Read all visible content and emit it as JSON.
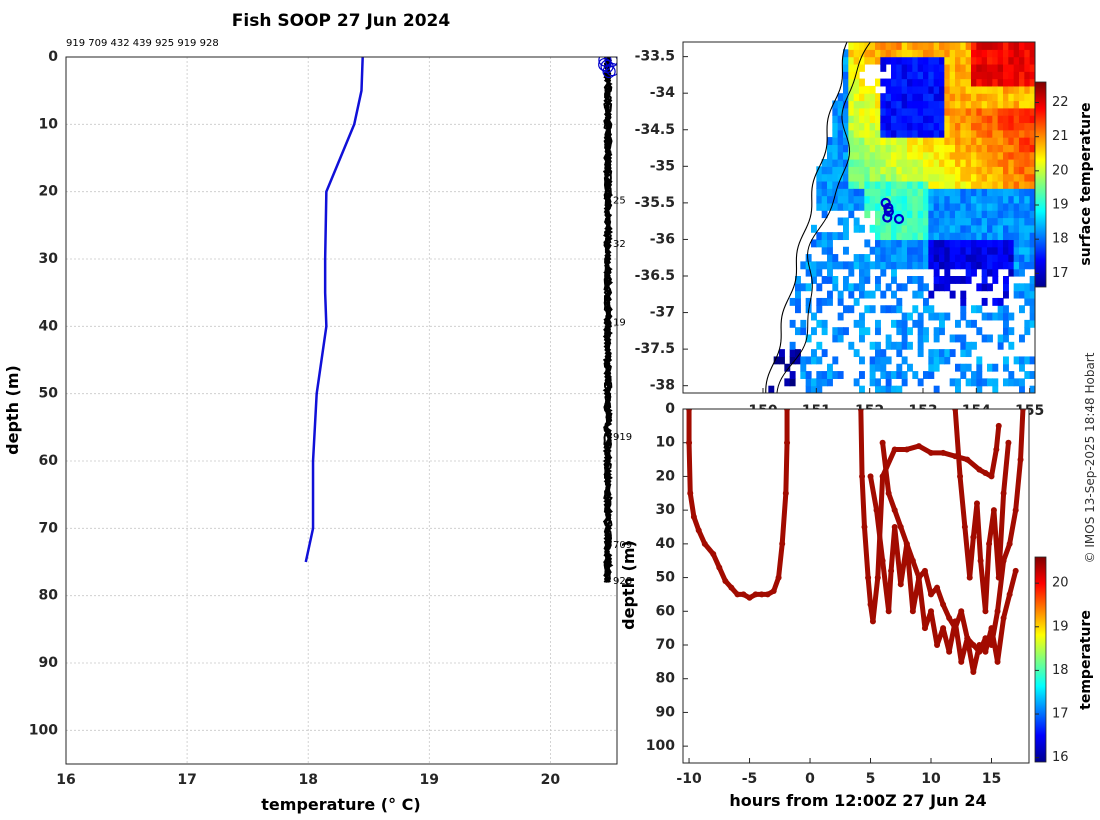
{
  "colors": {
    "profile_line": "#1010d8",
    "trace_dots": "#a20b00",
    "markers": "#0000cc",
    "grid": "#c8c8c8",
    "coast": "#000000"
  },
  "credit": "© IMOS 13-Sep-2025 18:48 Hobart",
  "chart_data": [
    {
      "type": "line",
      "title": "Fish SOOP 27 Jun 2024",
      "subtitle": "919 709 432 439 925 919 928",
      "xlabel": "temperature (° C)",
      "ylabel": "depth (m)",
      "xlim": [
        16,
        20.55
      ],
      "ylim": [
        105,
        0
      ],
      "xticks": [
        "16",
        "17",
        "18",
        "19",
        "20"
      ],
      "yticks": [
        "0",
        "10",
        "20",
        "30",
        "40",
        "50",
        "60",
        "70",
        "80",
        "90",
        "100"
      ],
      "grid": true,
      "series": [
        {
          "name": "mean profile",
          "x": [
            18.45,
            18.44,
            18.38,
            18.15,
            18.14,
            18.14,
            18.15,
            18.07,
            18.04,
            18.04,
            17.98
          ],
          "y": [
            0,
            5,
            10,
            20,
            30,
            35,
            40,
            50,
            60,
            70,
            75
          ]
        }
      ],
      "annotations": [
        "25",
        "32",
        "19",
        "919",
        "709",
        "928"
      ],
      "surface_markers": 6
    },
    {
      "type": "heatmap",
      "title": "",
      "xlabel": "",
      "ylabel": "",
      "xlim": [
        148.5,
        155.1
      ],
      "ylim": [
        -38.1,
        -33.3
      ],
      "xticks": [
        "150",
        "151",
        "152",
        "153",
        "154",
        "155"
      ],
      "yticks": [
        "-33.5",
        "-34",
        "-34.5",
        "-35",
        "-35.5",
        "-36",
        "-36.5",
        "-37",
        "-37.5",
        "-38"
      ],
      "colorbar": {
        "label": "surface temperature",
        "range": [
          16.6,
          22.6
        ],
        "ticks": [
          "17",
          "18",
          "19",
          "20",
          "21",
          "22"
        ]
      },
      "stations": [
        {
          "lon": 152.3,
          "lat": -35.5
        },
        {
          "lon": 152.35,
          "lat": -35.57
        },
        {
          "lon": 152.36,
          "lat": -35.62
        },
        {
          "lon": 152.33,
          "lat": -35.7
        },
        {
          "lon": 152.55,
          "lat": -35.72
        }
      ]
    },
    {
      "type": "scatter",
      "title": "",
      "xlabel": "hours from 12:00Z 27 Jun 24",
      "ylabel": "depth (m)",
      "xlim": [
        -10.5,
        18.1
      ],
      "ylim": [
        105,
        0
      ],
      "xticks": [
        "-10",
        "-5",
        "0",
        "5",
        "10",
        "15"
      ],
      "yticks": [
        "0",
        "10",
        "20",
        "30",
        "40",
        "50",
        "60",
        "70",
        "80",
        "90",
        "100"
      ],
      "colorbar": {
        "label": "temperature",
        "range": [
          15.9,
          20.6
        ],
        "ticks": [
          "16",
          "17",
          "18",
          "19",
          "20"
        ]
      },
      "series": [
        {
          "name": "trace 1",
          "x": [
            -10.0,
            -10.0,
            -9.9,
            -9.6,
            -9.2,
            -8.7,
            -8.0,
            -7.5,
            -7.0,
            -6.5,
            -6.0,
            -5.5,
            -5.0,
            -4.5,
            -4.0,
            -3.5,
            -3.0,
            -2.6,
            -2.3,
            -2.0,
            -1.9,
            -1.9
          ],
          "y": [
            0,
            10,
            25,
            32,
            36,
            40,
            43,
            47,
            51,
            53,
            55,
            55,
            56,
            55,
            55,
            55,
            54,
            50,
            40,
            25,
            10,
            0
          ]
        },
        {
          "name": "trace 2",
          "x": [
            4.2,
            4.3,
            4.5,
            4.8,
            5.0,
            5.2,
            5.6,
            6.0,
            7.0,
            8.0,
            9.0,
            10.0,
            11.0,
            12.0,
            13.0,
            14.0,
            14.5,
            15.0,
            15.4,
            15.6
          ],
          "y": [
            0,
            20,
            35,
            50,
            58,
            63,
            50,
            20,
            12,
            12,
            11,
            13,
            13,
            14,
            15,
            18,
            19,
            20,
            12,
            5
          ]
        },
        {
          "name": "trace 3",
          "x": [
            5.0,
            5.5,
            6.0,
            6.5,
            6.7,
            7.0,
            7.5,
            8.0,
            8.5,
            9.0,
            9.5,
            10.0,
            10.5,
            11.0,
            11.5,
            12.0,
            12.5,
            13.0,
            13.5,
            14.0,
            14.5,
            15.0,
            15.5,
            16.0,
            16.5,
            17.0
          ],
          "y": [
            20,
            30,
            45,
            60,
            48,
            35,
            52,
            40,
            60,
            50,
            65,
            60,
            70,
            65,
            72,
            63,
            75,
            68,
            78,
            70,
            72,
            65,
            75,
            62,
            55,
            48
          ]
        },
        {
          "name": "trace 4",
          "x": [
            6.0,
            6.5,
            7.0,
            7.5,
            8.0,
            8.5,
            9.0,
            9.5,
            10.0,
            10.5,
            11.0,
            11.5,
            12.0,
            12.5,
            13.0,
            13.5,
            14.0,
            14.5,
            15.0,
            15.5,
            16.0,
            16.5,
            17.0,
            17.4,
            17.6
          ],
          "y": [
            10,
            25,
            30,
            35,
            40,
            45,
            50,
            48,
            55,
            53,
            58,
            62,
            65,
            60,
            68,
            70,
            72,
            68,
            70,
            60,
            45,
            40,
            30,
            15,
            0
          ]
        },
        {
          "name": "trace 5",
          "x": [
            12.0,
            12.4,
            12.8,
            13.2,
            13.5,
            13.8,
            14.1,
            14.5,
            14.8,
            15.2,
            15.6,
            16.0,
            16.4
          ],
          "y": [
            0,
            20,
            35,
            50,
            38,
            28,
            45,
            60,
            40,
            30,
            50,
            25,
            10
          ]
        }
      ]
    }
  ]
}
